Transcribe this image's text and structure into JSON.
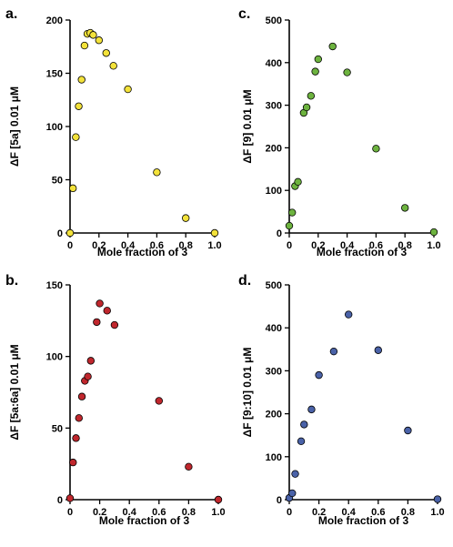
{
  "chart_data": [
    {
      "panel": "a.",
      "type": "scatter",
      "xlabel": "Mole fraction of 3",
      "ylabel": "ΔF [5a] 0.01 μM",
      "xlim": [
        0,
        1.0
      ],
      "ylim": [
        0,
        200
      ],
      "xticks": [
        "0",
        "0.2",
        "0.4",
        "0.6",
        "0.8",
        "1.0"
      ],
      "yticks": [
        "0",
        "50",
        "100",
        "150",
        "200"
      ],
      "marker_color": "#f3e23a",
      "x": [
        0.0,
        0.02,
        0.04,
        0.06,
        0.08,
        0.1,
        0.12,
        0.14,
        0.16,
        0.2,
        0.25,
        0.3,
        0.4,
        0.6,
        0.8,
        1.0
      ],
      "y": [
        0,
        42,
        90,
        119,
        144,
        176,
        187,
        188,
        186,
        181,
        169,
        157,
        135,
        57,
        14,
        0
      ]
    },
    {
      "panel": "b.",
      "type": "scatter",
      "xlabel": "Mole fraction of 3",
      "ylabel": "ΔF [5a:6a] 0.01 μM",
      "xlim": [
        0,
        1.0
      ],
      "ylim": [
        0,
        150
      ],
      "xticks": [
        "0",
        "0.2",
        "0.4",
        "0.6",
        "0.8",
        "1.0"
      ],
      "yticks": [
        "0",
        "50",
        "100",
        "150"
      ],
      "marker_color": "#c0272d",
      "x": [
        0.0,
        0.02,
        0.04,
        0.06,
        0.08,
        0.1,
        0.12,
        0.14,
        0.18,
        0.2,
        0.25,
        0.3,
        0.6,
        0.8,
        1.0
      ],
      "y": [
        1,
        26,
        43,
        57,
        72,
        83,
        86,
        97,
        124,
        137,
        132,
        122,
        69,
        23,
        0
      ]
    },
    {
      "panel": "c.",
      "type": "scatter",
      "xlabel": "Mole fraction of 3",
      "ylabel": "ΔF [9] 0.01 μM",
      "xlim": [
        0,
        1.0
      ],
      "ylim": [
        0,
        500
      ],
      "xticks": [
        "0",
        "0.2",
        "0.4",
        "0.6",
        "0.8",
        "1.0"
      ],
      "yticks": [
        "0",
        "100",
        "200",
        "300",
        "400",
        "500"
      ],
      "marker_color": "#6db33f",
      "x": [
        0.0,
        0.02,
        0.04,
        0.06,
        0.1,
        0.12,
        0.15,
        0.18,
        0.2,
        0.3,
        0.4,
        0.6,
        0.8,
        1.0
      ],
      "y": [
        17,
        48,
        110,
        120,
        282,
        295,
        322,
        379,
        408,
        438,
        377,
        198,
        59,
        2
      ],
      "x_alt_note": ""
    },
    {
      "panel": "d.",
      "type": "scatter",
      "xlabel": "Mole fraction of 3",
      "ylabel": "ΔF [9:10] 0.01 μM",
      "xlim": [
        0,
        1.0
      ],
      "ylim": [
        0,
        500
      ],
      "xticks": [
        "0",
        "0.2",
        "0.4",
        "0.6",
        "0.8",
        "1.0"
      ],
      "yticks": [
        "0",
        "100",
        "200",
        "300",
        "400",
        "500"
      ],
      "marker_color": "#4a62a8",
      "x": [
        0.0,
        0.02,
        0.04,
        0.08,
        0.1,
        0.15,
        0.2,
        0.3,
        0.4,
        0.6,
        0.8,
        1.0
      ],
      "y": [
        4,
        15,
        60,
        136,
        175,
        210,
        290,
        345,
        431,
        348,
        161,
        1
      ]
    }
  ]
}
